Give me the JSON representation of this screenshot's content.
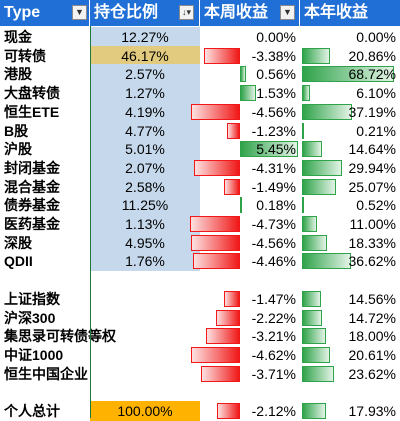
{
  "header": {
    "col_type": "Type",
    "col_position": "持仓比例",
    "col_week": "本周收益",
    "col_year": "本年收益"
  },
  "week_scale_max": 5.45,
  "year_scale_max": 68.72,
  "colors": {
    "header_bg": "#1f6fd6",
    "pos_blue": "#c6d9ec",
    "pos_highlight": "#e2ca7e",
    "total_orange": "#ffb300",
    "bar_red": "#f01818",
    "bar_green": "#2fa34a",
    "divider_green": "#1d7a3a"
  },
  "rows": [
    {
      "type": "现金",
      "pos": "12.27%",
      "week": "0.00%",
      "week_num": 0.0,
      "year": "0.00%",
      "year_num": 0.0,
      "pos_fill": "blue"
    },
    {
      "type": "可转债",
      "pos": "46.17%",
      "week": "-3.38%",
      "week_num": -3.38,
      "year": "20.86%",
      "year_num": 20.86,
      "pos_fill": "highlight"
    },
    {
      "type": "港股",
      "pos": "2.57%",
      "week": "0.56%",
      "week_num": 0.56,
      "year": "68.72%",
      "year_num": 68.72,
      "pos_fill": "blue"
    },
    {
      "type": "大盘转债",
      "pos": "1.27%",
      "week": "1.53%",
      "week_num": 1.53,
      "year": "6.10%",
      "year_num": 6.1,
      "pos_fill": "blue"
    },
    {
      "type": "恒生ETE",
      "pos": "4.19%",
      "week": "-4.56%",
      "week_num": -4.56,
      "year": "37.19%",
      "year_num": 37.19,
      "pos_fill": "blue"
    },
    {
      "type": "B股",
      "pos": "4.77%",
      "week": "-1.23%",
      "week_num": -1.23,
      "year": "0.21%",
      "year_num": 0.21,
      "pos_fill": "blue"
    },
    {
      "type": "沪股",
      "pos": "5.01%",
      "week": "5.45%",
      "week_num": 5.45,
      "year": "14.64%",
      "year_num": 14.64,
      "pos_fill": "blue"
    },
    {
      "type": "封闭基金",
      "pos": "2.07%",
      "week": "-4.31%",
      "week_num": -4.31,
      "year": "29.94%",
      "year_num": 29.94,
      "pos_fill": "blue"
    },
    {
      "type": "混合基金",
      "pos": "2.58%",
      "week": "-1.49%",
      "week_num": -1.49,
      "year": "25.07%",
      "year_num": 25.07,
      "pos_fill": "blue"
    },
    {
      "type": "债券基金",
      "pos": "11.25%",
      "week": "0.18%",
      "week_num": 0.18,
      "year": "0.52%",
      "year_num": 0.52,
      "pos_fill": "blue"
    },
    {
      "type": "医药基金",
      "pos": "1.13%",
      "week": "-4.73%",
      "week_num": -4.73,
      "year": "11.00%",
      "year_num": 11.0,
      "pos_fill": "blue"
    },
    {
      "type": "深股",
      "pos": "4.95%",
      "week": "-4.56%",
      "week_num": -4.56,
      "year": "18.33%",
      "year_num": 18.33,
      "pos_fill": "blue"
    },
    {
      "type": "QDII",
      "pos": "1.76%",
      "week": "-4.46%",
      "week_num": -4.46,
      "year": "36.62%",
      "year_num": 36.62,
      "pos_fill": "blue"
    },
    {
      "type": "",
      "pos": "",
      "week": "",
      "week_num": null,
      "year": "",
      "year_num": null,
      "pos_fill": "none"
    },
    {
      "type": "上证指数",
      "pos": "",
      "week": "-1.47%",
      "week_num": -1.47,
      "year": "14.56%",
      "year_num": 14.56,
      "pos_fill": "none"
    },
    {
      "type": "沪深300",
      "pos": "",
      "week": "-2.22%",
      "week_num": -2.22,
      "year": "14.72%",
      "year_num": 14.72,
      "pos_fill": "none"
    },
    {
      "type": "集思录可转债等权",
      "pos": "",
      "week": "-3.21%",
      "week_num": -3.21,
      "year": "18.00%",
      "year_num": 18.0,
      "pos_fill": "none"
    },
    {
      "type": "中证1000",
      "pos": "",
      "week": "-4.62%",
      "week_num": -4.62,
      "year": "20.61%",
      "year_num": 20.61,
      "pos_fill": "none"
    },
    {
      "type": "恒生中国企业",
      "pos": "",
      "week": "-3.71%",
      "week_num": -3.71,
      "year": "23.62%",
      "year_num": 23.62,
      "pos_fill": "none"
    },
    {
      "type": "",
      "pos": "",
      "week": "",
      "week_num": null,
      "year": "",
      "year_num": null,
      "pos_fill": "none"
    },
    {
      "type": "个人总计",
      "pos": "100.00%",
      "week": "-2.12%",
      "week_num": -2.12,
      "year": "17.93%",
      "year_num": 17.93,
      "pos_fill": "total"
    }
  ]
}
